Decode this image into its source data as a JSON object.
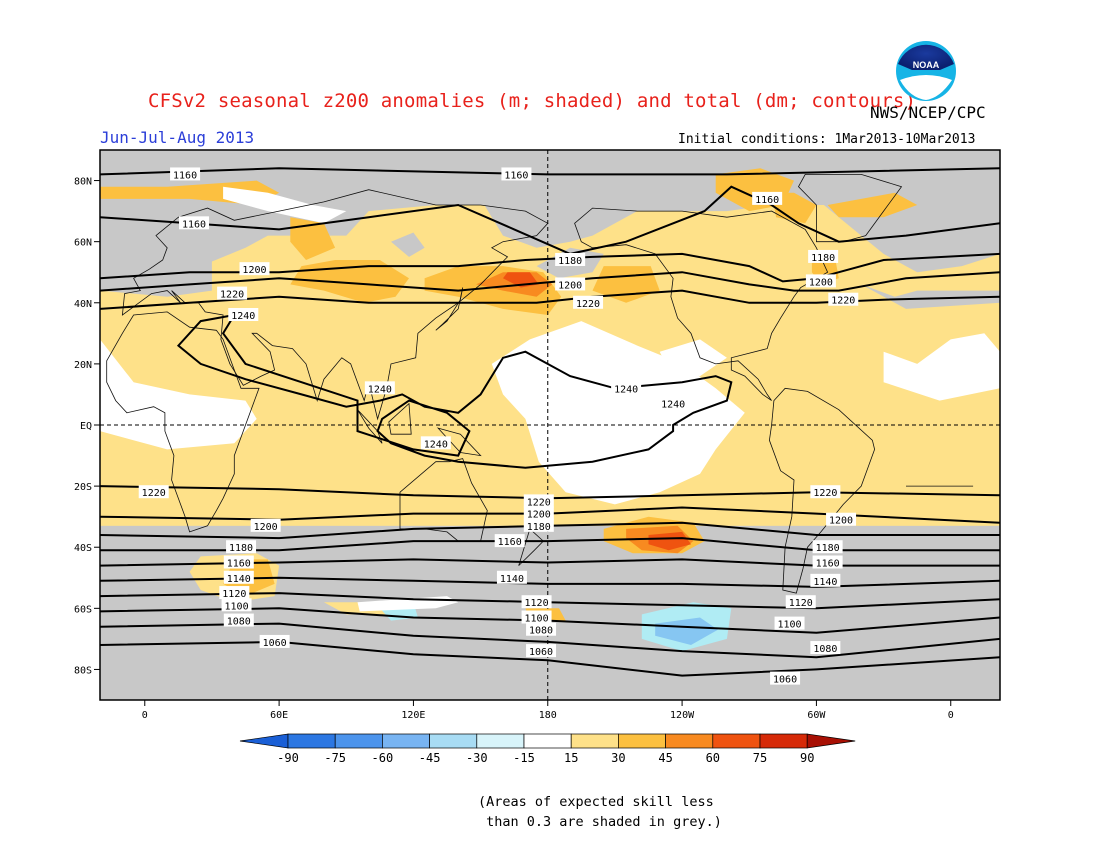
{
  "title": "CFSv2 seasonal z200 anomalies (m; shaded) and total (dm; contours)",
  "organization": "NWS/NCEP/CPC",
  "logo_text": "NOAA",
  "season": "Jun-Jul-Aug 2013",
  "initial_conditions": "Initial conditions: 1Mar2013-10Mar2013",
  "map": {
    "lat_ticks": [
      "80N",
      "60N",
      "40N",
      "20N",
      "EQ",
      "20S",
      "40S",
      "60S",
      "80S"
    ],
    "lon_ticks": [
      "0",
      "60E",
      "120E",
      "180",
      "120W",
      "60W",
      "0"
    ],
    "anomaly_colors": {
      "neutral": "#ffffff",
      "pos_15_30": "#fee189",
      "pos_30_45": "#fcc040",
      "pos_45_60": "#f88a20",
      "pos_60_75": "#ef5310",
      "neg_15_30": "#b0ecf4",
      "neg_30_45": "#86c6f2",
      "low_skill_grey": "#c8c8c8"
    },
    "contour_labels": [
      {
        "text": "1160",
        "lat": 82,
        "lon": 18
      },
      {
        "text": "1160",
        "lat": 82,
        "lon": 166
      },
      {
        "text": "1160",
        "lat": 66,
        "lon": 22
      },
      {
        "text": "1160",
        "lat": 74,
        "lon": -82
      },
      {
        "text": "1200",
        "lat": 51,
        "lon": 49
      },
      {
        "text": "1180",
        "lat": 54,
        "lon": -170
      },
      {
        "text": "1180",
        "lat": 55,
        "lon": -57
      },
      {
        "text": "1200",
        "lat": 46,
        "lon": -170
      },
      {
        "text": "1200",
        "lat": 47,
        "lon": -58
      },
      {
        "text": "1220",
        "lat": 43,
        "lon": 39
      },
      {
        "text": "1220",
        "lat": 40,
        "lon": -162
      },
      {
        "text": "1220",
        "lat": 41,
        "lon": -48
      },
      {
        "text": "1240",
        "lat": 36,
        "lon": 44
      },
      {
        "text": "1240",
        "lat": 12,
        "lon": 105
      },
      {
        "text": "1240",
        "lat": -6,
        "lon": 130
      },
      {
        "text": "1240",
        "lat": 12,
        "lon": -145
      },
      {
        "text": "1240",
        "lat": 7,
        "lon": -124
      },
      {
        "text": "1220",
        "lat": -22,
        "lon": 4
      },
      {
        "text": "1220",
        "lat": -25,
        "lon": 176
      },
      {
        "text": "1220",
        "lat": -22,
        "lon": -56
      },
      {
        "text": "1200",
        "lat": -33,
        "lon": 54
      },
      {
        "text": "1200",
        "lat": -29,
        "lon": 176
      },
      {
        "text": "1200",
        "lat": -31,
        "lon": -49
      },
      {
        "text": "1180",
        "lat": -33,
        "lon": 176
      },
      {
        "text": "1180",
        "lat": -40,
        "lon": 43
      },
      {
        "text": "1180",
        "lat": -40,
        "lon": -55
      },
      {
        "text": "1160",
        "lat": -38,
        "lon": 163
      },
      {
        "text": "1160",
        "lat": -45,
        "lon": 42
      },
      {
        "text": "1160",
        "lat": -45,
        "lon": -55
      },
      {
        "text": "1140",
        "lat": -50,
        "lon": 42
      },
      {
        "text": "1140",
        "lat": -50,
        "lon": 164
      },
      {
        "text": "1140",
        "lat": -51,
        "lon": -56
      },
      {
        "text": "1120",
        "lat": -55,
        "lon": 40
      },
      {
        "text": "1120",
        "lat": -58,
        "lon": 175
      },
      {
        "text": "1120",
        "lat": -58,
        "lon": -67
      },
      {
        "text": "1100",
        "lat": -59,
        "lon": 41
      },
      {
        "text": "1100",
        "lat": -63,
        "lon": 175
      },
      {
        "text": "1100",
        "lat": -65,
        "lon": -72
      },
      {
        "text": "1080",
        "lat": -64,
        "lon": 42
      },
      {
        "text": "1080",
        "lat": -67,
        "lon": 177
      },
      {
        "text": "1080",
        "lat": -73,
        "lon": -56
      },
      {
        "text": "1060",
        "lat": -71,
        "lon": 58
      },
      {
        "text": "1060",
        "lat": -74,
        "lon": 177
      },
      {
        "text": "1060",
        "lat": -83,
        "lon": -74
      }
    ]
  },
  "colorbar": {
    "labels": [
      "-90",
      "-75",
      "-60",
      "-45",
      "-30",
      "-15",
      "15",
      "30",
      "45",
      "60",
      "75",
      "90"
    ],
    "colors": [
      "#1a5fd6",
      "#2c77e2",
      "#4c94ec",
      "#78b4f2",
      "#a8dcf4",
      "#d8f4fa",
      "#ffffff",
      "#fee189",
      "#fcc040",
      "#f88a20",
      "#ef5310",
      "#d62a08",
      "#a81004"
    ]
  },
  "footnote": "(Areas of expected skill less\n than 0.3 are shaded in grey.)"
}
